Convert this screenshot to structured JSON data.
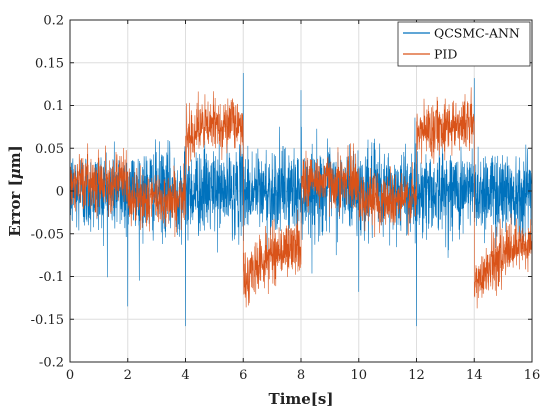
{
  "chart_data": {
    "type": "line",
    "title": "",
    "xlabel": "Time[s]",
    "ylabel_prefix": "Error [",
    "ylabel_mu": "μ",
    "ylabel_suffix": "m]",
    "xlim": [
      0,
      16
    ],
    "ylim": [
      -0.2,
      0.2
    ],
    "xticks": [
      0,
      2,
      4,
      6,
      8,
      10,
      12,
      14,
      16
    ],
    "xtick_labels": [
      "0",
      "2",
      "4",
      "6",
      "8",
      "10",
      "12",
      "14",
      "16"
    ],
    "yticks": [
      -0.2,
      -0.15,
      -0.1,
      -0.05,
      0,
      0.05,
      0.1,
      0.15,
      0.2
    ],
    "ytick_labels": [
      "-0.2",
      "-0.15",
      "-0.1",
      "-0.05",
      "0",
      "0.05",
      "0.1",
      "0.15",
      "0.2"
    ],
    "grid": true,
    "legend_position": "top-right",
    "series": [
      {
        "name": "QCSMC-ANN",
        "color": "#0072BD",
        "style": "high-frequency noise",
        "center": 0.0,
        "typical_band": [
          -0.05,
          0.05
        ],
        "peak_range": [
          -0.105,
          0.105
        ],
        "spikes": [
          {
            "x": 2,
            "y": -0.135
          },
          {
            "x": 4,
            "y": -0.158
          },
          {
            "x": 6,
            "y": 0.138
          },
          {
            "x": 8,
            "y": 0.118
          },
          {
            "x": 10,
            "y": -0.118
          },
          {
            "x": 12,
            "y": -0.158
          },
          {
            "x": 14,
            "y": 0.132
          }
        ]
      },
      {
        "name": "PID",
        "color": "#D95319",
        "style": "high-frequency noise with step-dependent offset",
        "segments": [
          {
            "x": [
              0,
              2
            ],
            "center": [
              0.012,
              0.012
            ],
            "band": 0.035
          },
          {
            "x": [
              2,
              4
            ],
            "center": [
              -0.01,
              -0.01
            ],
            "band": 0.035
          },
          {
            "x": [
              4,
              6
            ],
            "center": [
              0.065,
              0.08
            ],
            "band": 0.035
          },
          {
            "x": [
              6,
              8
            ],
            "center": [
              -0.115,
              -0.065
            ],
            "band": 0.035
          },
          {
            "x": [
              8,
              10
            ],
            "center": [
              0.012,
              0.012
            ],
            "band": 0.035
          },
          {
            "x": [
              10,
              12
            ],
            "center": [
              -0.01,
              -0.01
            ],
            "band": 0.035
          },
          {
            "x": [
              12,
              14
            ],
            "center": [
              0.065,
              0.08
            ],
            "band": 0.035
          },
          {
            "x": [
              14,
              16
            ],
            "center": [
              -0.115,
              -0.065
            ],
            "band": 0.035
          }
        ]
      }
    ]
  }
}
